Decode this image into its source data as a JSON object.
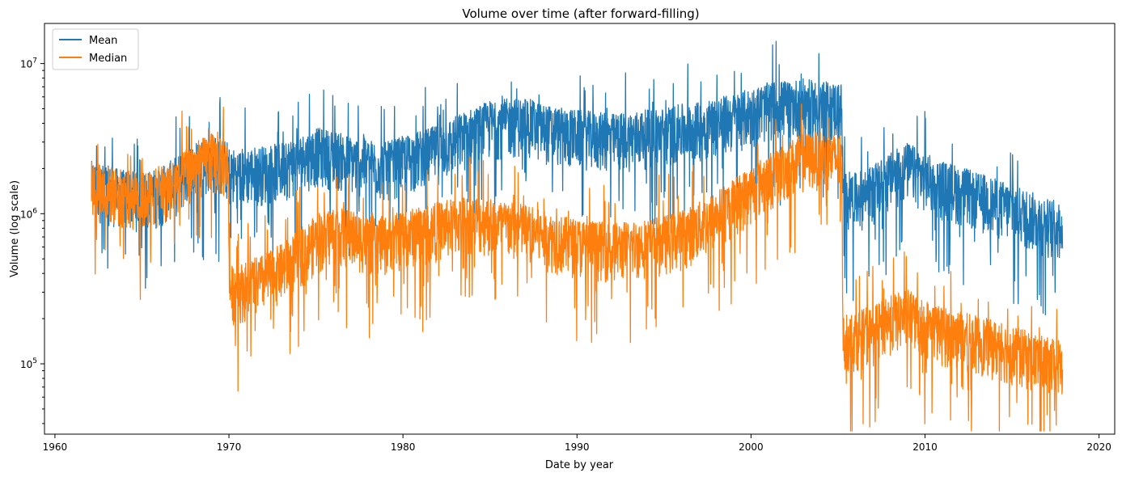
{
  "chart_data": {
    "type": "line",
    "title": "Volume over time (after forward-filling)",
    "xlabel": "Date by year",
    "ylabel": "Volume (log scale)",
    "yscale": "log",
    "xlim": [
      1959.4,
      2020.9
    ],
    "ylim": [
      34000,
      18500000
    ],
    "xticks": [
      1960,
      1970,
      1980,
      1990,
      2000,
      2010,
      2020
    ],
    "xtick_labels": [
      "1960",
      "1970",
      "1980",
      "1990",
      "2000",
      "2010",
      "2020"
    ],
    "yticks": [
      100000,
      1000000,
      10000000
    ],
    "ytick_labels": [
      {
        "base": "10",
        "exp": "5"
      },
      {
        "base": "10",
        "exp": "6"
      },
      {
        "base": "10",
        "exp": "7"
      }
    ],
    "grid": false,
    "legend_position": "top-left",
    "series": [
      {
        "name": "Mean",
        "color": "#1f77b4",
        "x_start": 1962.1,
        "x_end": 2017.9,
        "points": [
          [
            1962.1,
            1500000
          ],
          [
            1963,
            1400000
          ],
          [
            1964,
            1300000
          ],
          [
            1965,
            1250000
          ],
          [
            1966,
            1350000
          ],
          [
            1967,
            1600000
          ],
          [
            1968,
            2000000
          ],
          [
            1969,
            2300000
          ],
          [
            1969.95,
            2000000
          ],
          [
            1970.05,
            1800000
          ],
          [
            1971,
            1850000
          ],
          [
            1972,
            1900000
          ],
          [
            1973,
            2000000
          ],
          [
            1974,
            2200000
          ],
          [
            1975,
            2500000
          ],
          [
            1976,
            2400000
          ],
          [
            1977,
            2200000
          ],
          [
            1978,
            2100000
          ],
          [
            1979,
            2000000
          ],
          [
            1980,
            2200000
          ],
          [
            1981,
            2400000
          ],
          [
            1982,
            2600000
          ],
          [
            1983,
            3000000
          ],
          [
            1984,
            3400000
          ],
          [
            1985,
            3800000
          ],
          [
            1986,
            3900000
          ],
          [
            1987,
            4000000
          ],
          [
            1988,
            3600000
          ],
          [
            1989,
            3400000
          ],
          [
            1990,
            3300000
          ],
          [
            1991,
            3200000
          ],
          [
            1992,
            3100000
          ],
          [
            1993,
            3200000
          ],
          [
            1994,
            3300000
          ],
          [
            1995,
            3400000
          ],
          [
            1996,
            3600000
          ],
          [
            1997,
            3700000
          ],
          [
            1998,
            4000000
          ],
          [
            1999,
            4200000
          ],
          [
            2000,
            4600000
          ],
          [
            2001,
            5000000
          ],
          [
            2002,
            5200000
          ],
          [
            2003,
            5300000
          ],
          [
            2004,
            5100000
          ],
          [
            2005.2,
            5000000
          ],
          [
            2005.3,
            1300000
          ],
          [
            2006,
            1250000
          ],
          [
            2007,
            1400000
          ],
          [
            2008,
            1700000
          ],
          [
            2009,
            2000000
          ],
          [
            2010,
            1700000
          ],
          [
            2011,
            1500000
          ],
          [
            2012,
            1400000
          ],
          [
            2013,
            1250000
          ],
          [
            2014,
            1150000
          ],
          [
            2015,
            1050000
          ],
          [
            2016,
            950000
          ],
          [
            2017,
            850000
          ],
          [
            2017.9,
            800000
          ]
        ]
      },
      {
        "name": "Median",
        "color": "#ff7f0e",
        "x_start": 1962.1,
        "x_end": 2017.9,
        "points": [
          [
            1962.1,
            1500000
          ],
          [
            1963,
            1400000
          ],
          [
            1964,
            1300000
          ],
          [
            1965,
            1250000
          ],
          [
            1966,
            1350000
          ],
          [
            1967,
            1600000
          ],
          [
            1968,
            2000000
          ],
          [
            1969,
            2300000
          ],
          [
            1969.95,
            2000000
          ],
          [
            1970.05,
            300000
          ],
          [
            1971,
            320000
          ],
          [
            1972,
            360000
          ],
          [
            1973,
            420000
          ],
          [
            1974,
            520000
          ],
          [
            1975,
            650000
          ],
          [
            1976,
            750000
          ],
          [
            1977,
            700000
          ],
          [
            1978,
            650000
          ],
          [
            1979,
            640000
          ],
          [
            1980,
            700000
          ],
          [
            1981,
            750000
          ],
          [
            1982,
            800000
          ],
          [
            1983,
            850000
          ],
          [
            1984,
            900000
          ],
          [
            1985,
            850000
          ],
          [
            1986,
            800000
          ],
          [
            1987,
            780000
          ],
          [
            1988,
            700000
          ],
          [
            1989,
            650000
          ],
          [
            1990,
            620000
          ],
          [
            1991,
            600000
          ],
          [
            1992,
            580000
          ],
          [
            1993,
            600000
          ],
          [
            1994,
            620000
          ],
          [
            1995,
            650000
          ],
          [
            1996,
            700000
          ],
          [
            1997,
            800000
          ],
          [
            1998,
            950000
          ],
          [
            1999,
            1150000
          ],
          [
            2000,
            1400000
          ],
          [
            2001,
            1700000
          ],
          [
            2002,
            2000000
          ],
          [
            2003,
            2300000
          ],
          [
            2004,
            2400000
          ],
          [
            2005.2,
            2200000
          ],
          [
            2005.3,
            140000
          ],
          [
            2006,
            150000
          ],
          [
            2007,
            160000
          ],
          [
            2008,
            190000
          ],
          [
            2009,
            210000
          ],
          [
            2010,
            180000
          ],
          [
            2011,
            160000
          ],
          [
            2012,
            150000
          ],
          [
            2013,
            140000
          ],
          [
            2014,
            130000
          ],
          [
            2015,
            120000
          ],
          [
            2016,
            110000
          ],
          [
            2017,
            100000
          ],
          [
            2017.9,
            95000
          ]
        ]
      }
    ]
  }
}
